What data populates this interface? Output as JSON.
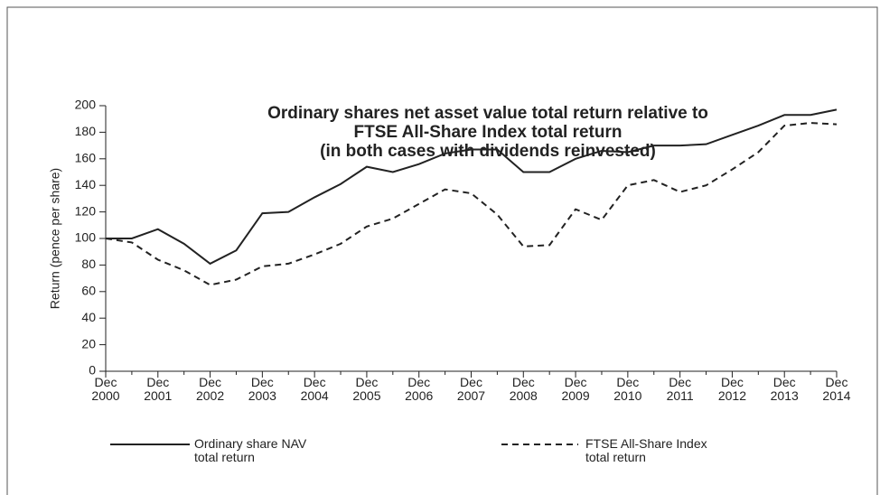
{
  "chart_data": {
    "type": "line",
    "title": "Ordinary shares net asset value total return relative to\nFTSE All-Share Index total return\n(in both cases with dividends reinvested)",
    "ylabel": "Return (pence per share)",
    "categories": [
      "Dec\n2000",
      null,
      "Dec\n2001",
      null,
      "Dec\n2002",
      null,
      "Dec\n2003",
      null,
      "Dec\n2004",
      null,
      "Dec\n2005",
      null,
      "Dec\n2006",
      null,
      "Dec\n2007",
      null,
      "Dec\n2008",
      null,
      "Dec\n2009",
      null,
      "Dec\n2010",
      null,
      "Dec\n2011",
      null,
      "Dec\n2012",
      null,
      "Dec\n2013",
      null,
      "Dec\n2014"
    ],
    "series": [
      {
        "name": "Ordinary share NAV\ntotal return",
        "color": "#222222",
        "dash": "solid",
        "values": [
          100,
          100,
          107,
          96,
          81,
          91,
          119,
          120,
          131,
          141,
          154,
          150,
          156,
          164,
          167,
          167,
          150,
          150,
          160,
          166,
          165,
          170,
          170,
          171,
          178,
          185,
          193,
          193,
          197
        ]
      },
      {
        "name": "FTSE All-Share Index\ntotal return",
        "color": "#222222",
        "dash": "dashed",
        "values": [
          100,
          97,
          84,
          76,
          65,
          69,
          79,
          81,
          88,
          96,
          109,
          115,
          126,
          137,
          134,
          118,
          94,
          95,
          122,
          114,
          140,
          144,
          135,
          140,
          152,
          165,
          185,
          187,
          186
        ]
      }
    ],
    "ylim": [
      0,
      200
    ],
    "yticks": [
      0,
      20,
      40,
      60,
      80,
      100,
      120,
      140,
      160,
      180,
      200
    ],
    "grid": false
  }
}
